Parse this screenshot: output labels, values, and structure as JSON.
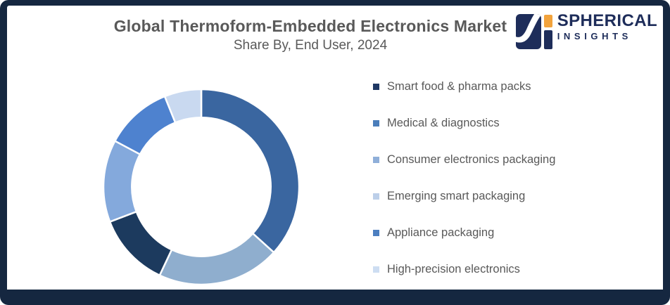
{
  "header": {
    "title": "Global Thermoform-Embedded Electronics Market",
    "subtitle": "Share By, End User, 2024"
  },
  "logo": {
    "name": "SPHERICAL",
    "tagline": "INSIGHTS",
    "navy": "#1E2D5A",
    "orange": "#F2A33C"
  },
  "colors": {
    "frame_background": "#152740",
    "content_background": "#FFFFFF",
    "title_text": "#595959",
    "legend_text": "#595959"
  },
  "chart_data": {
    "type": "pie",
    "subtype": "donut",
    "title": "Global Thermoform-Embedded Electronics Market",
    "subtitle": "Share By, End User, 2024",
    "legend_position": "right",
    "hole_ratio": 0.71,
    "start_angle_deg": 0,
    "direction": "clockwise",
    "value_labels_shown": false,
    "segments": [
      {
        "label": "Medical & diagnostics",
        "percent": 36.7,
        "color": "#3A66A0"
      },
      {
        "label": "Consumer electronics packaging",
        "percent": 20.3,
        "color": "#8FAECE"
      },
      {
        "label": "Smart food & pharma packs",
        "percent": 12.2,
        "color": "#1C3A5E"
      },
      {
        "label": "Emerging smart packaging",
        "percent": 13.6,
        "color": "#84A9DC"
      },
      {
        "label": "Appliance packaging",
        "percent": 11.1,
        "color": "#4E82CF"
      },
      {
        "label": "High-precision electronics",
        "percent": 6.1,
        "color": "#C9D9F0"
      }
    ]
  },
  "legend": {
    "items": [
      {
        "label": "Smart food & pharma packs",
        "color": "#1F3864"
      },
      {
        "label": "Medical & diagnostics",
        "color": "#4A7EBB"
      },
      {
        "label": "Consumer electronics packaging",
        "color": "#8FAFD9"
      },
      {
        "label": "Emerging smart packaging",
        "color": "#BCCFE9"
      },
      {
        "label": "Appliance packaging",
        "color": "#4C7FC0"
      },
      {
        "label": "High-precision electronics",
        "color": "#CDDDF2"
      }
    ]
  }
}
